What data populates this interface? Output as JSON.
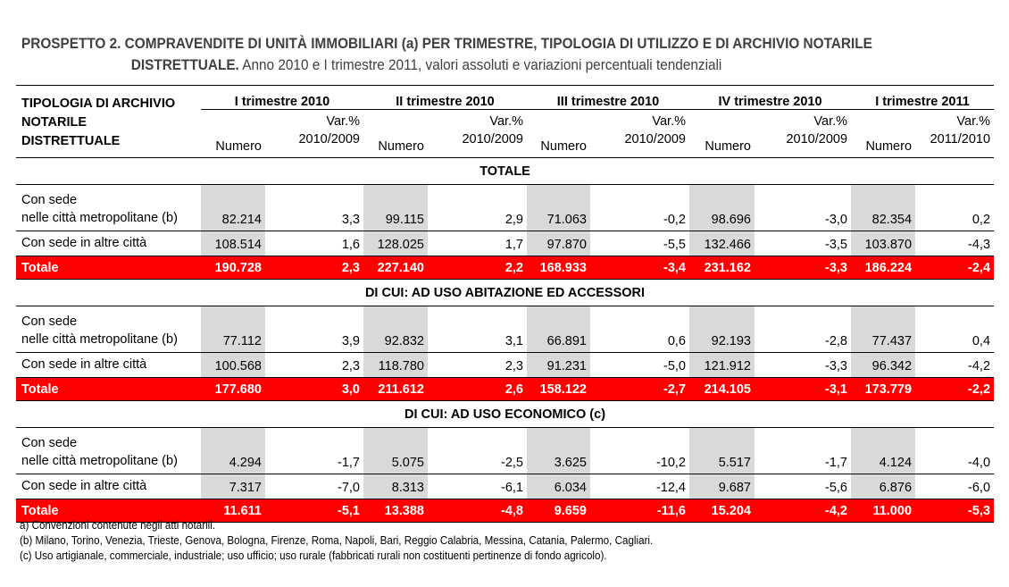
{
  "title": {
    "line1": "PROSPETTO 2. COMPRAVENDITE DI UNITÀ IMMOBILIARI (a) PER TRIMESTRE, TIPOLOGIA DI UTILIZZO E DI ARCHIVIO NOTARILE",
    "line2_bold": "DISTRETTUALE.",
    "line2_rest": " Anno 2010 e I trimestre 2011, valori assoluti e variazioni percentuali tendenziali"
  },
  "header": {
    "row_label": [
      "TIPOLOGIA DI ARCHIVIO",
      "NOTARILE",
      "DISTRETTUALE"
    ],
    "groups": [
      {
        "label": "I trimestre 2010",
        "num": "Numero",
        "var1": "Var.%",
        "var2": "2010/2009"
      },
      {
        "label": "II trimestre 2010",
        "num": "Numero",
        "var1": "Var.%",
        "var2": "2010/2009"
      },
      {
        "label": "III trimestre 2010",
        "num": "Numero",
        "var1": "Var.%",
        "var2": "2010/2009"
      },
      {
        "label": "IV trimestre 2010",
        "num": "Numero",
        "var1": "Var.%",
        "var2": "2010/2009"
      },
      {
        "label": "I trimestre 2011",
        "num": "Numero",
        "var1": "Var.%",
        "var2": "2011/2010"
      }
    ]
  },
  "sections": [
    {
      "title": "TOTALE",
      "rows": [
        {
          "label": [
            "Con sede",
            "nelle città  metropolitane (b)"
          ],
          "values": [
            "82.214",
            "3,3",
            "99.115",
            "2,9",
            "71.063",
            "-0,2",
            "98.696",
            "-3,0",
            "82.354",
            "0,2"
          ]
        },
        {
          "label": [
            "Con sede in altre città"
          ],
          "values": [
            "108.514",
            "1,6",
            "128.025",
            "1,7",
            "97.870",
            "-5,5",
            "132.466",
            "-3,5",
            "103.870",
            "-4,3"
          ]
        }
      ],
      "total": {
        "label": "Totale",
        "values": [
          "190.728",
          "2,3",
          "227.140",
          "2,2",
          "168.933",
          "-3,4",
          "231.162",
          "-3,3",
          "186.224",
          "-2,4"
        ]
      }
    },
    {
      "title": "DI CUI: AD USO ABITAZIONE ED ACCESSORI",
      "rows": [
        {
          "label": [
            "Con sede",
            "nelle città  metropolitane (b)"
          ],
          "values": [
            "77.112",
            "3,9",
            "92.832",
            "3,1",
            "66.891",
            "0,6",
            "92.193",
            "-2,8",
            "77.437",
            "0,4"
          ]
        },
        {
          "label": [
            "Con sede in altre città"
          ],
          "values": [
            "100.568",
            "2,3",
            "118.780",
            "2,3",
            "91.231",
            "-5,0",
            "121.912",
            "-3,3",
            "96.342",
            "-4,2"
          ]
        }
      ],
      "total": {
        "label": "Totale",
        "values": [
          "177.680",
          "3,0",
          "211.612",
          "2,6",
          "158.122",
          "-2,7",
          "214.105",
          "-3,1",
          "173.779",
          "-2,2"
        ]
      }
    },
    {
      "title": "DI CUI: AD USO ECONOMICO (c)",
      "rows": [
        {
          "label": [
            "Con sede",
            "nelle città  metropolitane (b)"
          ],
          "values": [
            "4.294",
            "-1,7",
            "5.075",
            "-2,5",
            "3.625",
            "-10,2",
            "5.517",
            "-1,7",
            "4.124",
            "-4,0"
          ]
        },
        {
          "label": [
            "Con sede in altre città"
          ],
          "values": [
            "7.317",
            "-7,0",
            "8.313",
            "-6,1",
            "6.034",
            "-12,4",
            "9.687",
            "-5,6",
            "6.876",
            "-6,0"
          ]
        }
      ],
      "total": {
        "label": "Totale",
        "values": [
          "11.611",
          "-5,1",
          "13.388",
          "-4,8",
          "9.659",
          "-11,6",
          "15.204",
          "-4,2",
          "11.000",
          "-5,3"
        ]
      }
    }
  ],
  "notes": [
    "a) Convenzioni contenute negli atti notarili.",
    "(b) Milano, Torino, Venezia, Trieste, Genova, Bologna, Firenze, Roma, Napoli, Bari, Reggio Calabria, Messina, Catania, Palermo, Cagliari.",
    "(c) Uso artigianale, commerciale, industriale; uso ufficio; uso rurale (fabbricati rurali non costituenti pertinenze di fondo agricolo)."
  ],
  "colors": {
    "total_row": "#ff0000",
    "numero_shading": "#d9d9d9"
  }
}
